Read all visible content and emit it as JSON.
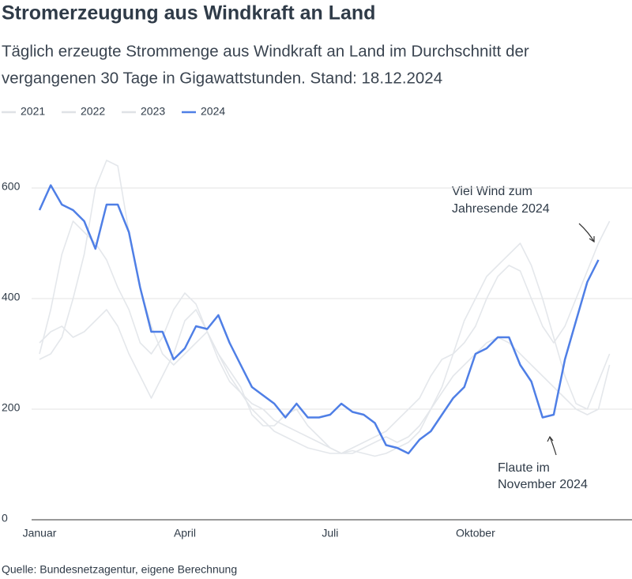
{
  "chart_data": {
    "type": "line",
    "title": "Stromerzeugung aus Windkraft an Land",
    "subtitle": [
      "Täglich erzeugte Strommenge aus Windkraft an Land im Durchschnitt der",
      "vergangenen 30 Tage in Gigawattstunden. Stand: 18.12.2024"
    ],
    "source": "Quelle: Bundesnetzagentur, eigene Berechnung",
    "annotations": [
      [
        "Viel Wind zum",
        "Jahresende 2024"
      ],
      [
        "Flaute im",
        "November 2024"
      ]
    ],
    "categories": [
      "Januar",
      null,
      null,
      null,
      null,
      null,
      null,
      null,
      null,
      null,
      null,
      null,
      null,
      "April",
      null,
      null,
      null,
      null,
      null,
      null,
      null,
      null,
      null,
      null,
      null,
      null,
      "Juli",
      null,
      null,
      null,
      null,
      null,
      null,
      null,
      null,
      null,
      null,
      null,
      null,
      "Oktober",
      null,
      null,
      null,
      null,
      null,
      null,
      null,
      null,
      null,
      null,
      null,
      null
    ],
    "ylim": [
      0,
      680
    ],
    "yticks": [
      0,
      200,
      400,
      600
    ],
    "grid": true,
    "series": [
      {
        "name": "2021",
        "color": "#e4e7eb",
        "values": [
          320,
          340,
          350,
          330,
          340,
          360,
          380,
          350,
          300,
          260,
          220,
          260,
          300,
          360,
          380,
          340,
          300,
          260,
          230,
          210,
          200,
          180,
          170,
          160,
          150,
          140,
          130,
          120,
          125,
          120,
          115,
          120,
          130,
          140,
          160,
          200,
          240,
          300,
          360,
          400,
          440,
          460,
          480,
          500,
          460,
          400,
          330,
          260,
          210,
          200,
          250,
          300
        ]
      },
      {
        "name": "2022",
        "color": "#e4e7eb",
        "values": [
          290,
          300,
          330,
          400,
          480,
          600,
          650,
          640,
          520,
          420,
          350,
          300,
          280,
          300,
          320,
          340,
          300,
          270,
          240,
          190,
          170,
          170,
          190,
          200,
          170,
          150,
          130,
          120,
          120,
          130,
          140,
          150,
          140,
          150,
          170,
          200,
          230,
          260,
          280,
          300,
          320,
          330,
          320,
          300,
          280,
          260,
          240,
          220,
          200,
          190,
          200,
          280
        ]
      },
      {
        "name": "2023",
        "color": "#e4e7eb",
        "values": [
          300,
          380,
          480,
          540,
          520,
          500,
          470,
          420,
          380,
          320,
          300,
          330,
          380,
          410,
          390,
          340,
          290,
          250,
          230,
          200,
          180,
          160,
          150,
          140,
          130,
          125,
          120,
          120,
          130,
          140,
          150,
          160,
          180,
          200,
          220,
          260,
          290,
          300,
          320,
          350,
          400,
          440,
          460,
          450,
          400,
          350,
          320,
          350,
          400,
          450,
          500,
          540
        ]
      },
      {
        "name": "2024",
        "color": "#4f7fe6",
        "values": [
          560,
          605,
          570,
          560,
          540,
          490,
          570,
          570,
          520,
          420,
          340,
          340,
          290,
          310,
          350,
          345,
          370,
          320,
          280,
          240,
          225,
          210,
          185,
          210,
          185,
          185,
          190,
          210,
          195,
          190,
          175,
          135,
          130,
          120,
          145,
          160,
          190,
          220,
          240,
          300,
          310,
          330,
          330,
          280,
          250,
          185,
          190,
          290,
          360,
          430,
          470,
          null
        ]
      }
    ]
  }
}
